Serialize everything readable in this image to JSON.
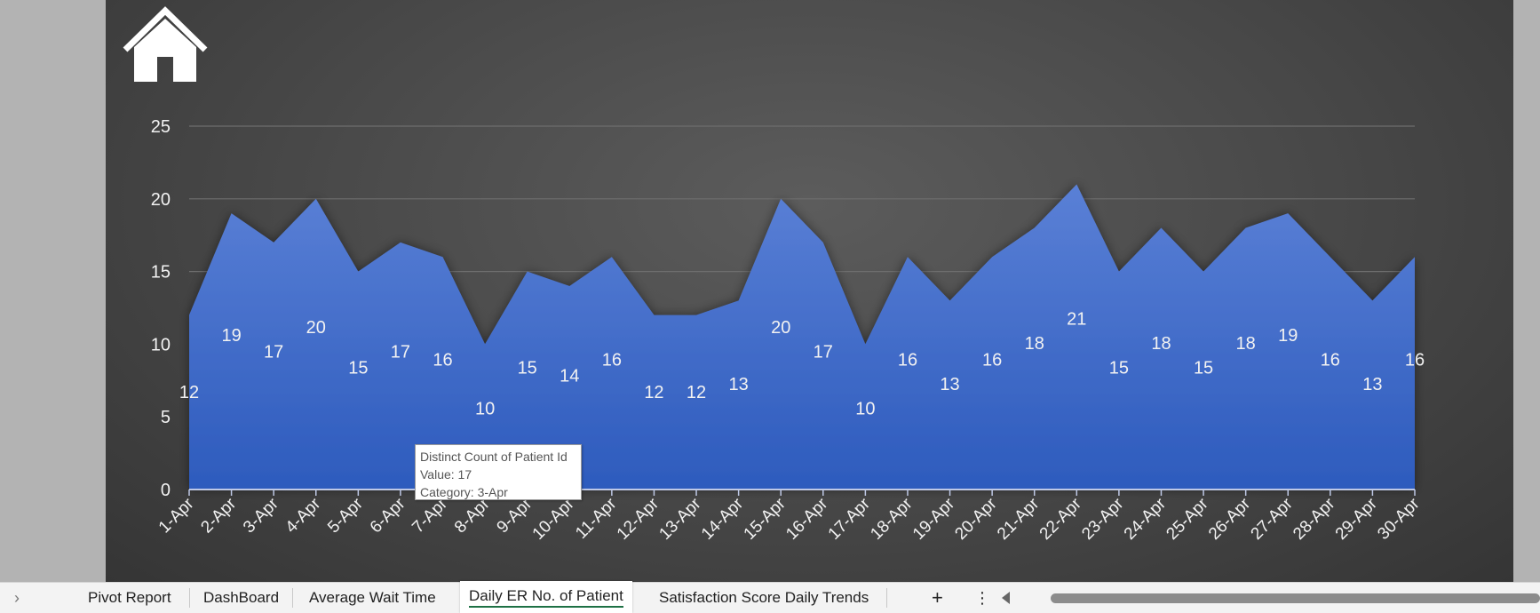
{
  "tabs": {
    "nav_arrow": "›",
    "items": [
      {
        "label": "Pivot Report"
      },
      {
        "label": "DashBoard"
      },
      {
        "label": "Average Wait Time"
      },
      {
        "label": "Daily ER No. of Patient"
      },
      {
        "label": "Satisfaction Score Daily Trends"
      }
    ],
    "active_index": 3,
    "add_label": "+",
    "more_label": "⋮"
  },
  "tooltip": {
    "line1": "Distinct Count of Patient Id",
    "line2": "Value: 17",
    "line3": "Category: 3-Apr"
  },
  "colors": {
    "area_top": "#5a80d6",
    "area_bottom": "#2d5bbd",
    "text": "#f2f2f2",
    "active_tab_underline": "#1e7145"
  },
  "chart_data": {
    "type": "area",
    "categories": [
      "1-Apr",
      "2-Apr",
      "3-Apr",
      "4-Apr",
      "5-Apr",
      "6-Apr",
      "7-Apr",
      "8-Apr",
      "9-Apr",
      "10-Apr",
      "11-Apr",
      "12-Apr",
      "13-Apr",
      "14-Apr",
      "15-Apr",
      "16-Apr",
      "17-Apr",
      "18-Apr",
      "19-Apr",
      "20-Apr",
      "21-Apr",
      "22-Apr",
      "23-Apr",
      "24-Apr",
      "25-Apr",
      "26-Apr",
      "27-Apr",
      "28-Apr",
      "29-Apr",
      "30-Apr"
    ],
    "values": [
      12,
      19,
      17,
      20,
      15,
      17,
      16,
      10,
      15,
      14,
      16,
      12,
      12,
      13,
      20,
      17,
      10,
      16,
      13,
      16,
      18,
      21,
      15,
      18,
      15,
      18,
      19,
      16,
      13,
      16
    ],
    "ylim": [
      0,
      25
    ],
    "yticks": [
      0,
      5,
      10,
      15,
      20,
      25
    ],
    "grid": true,
    "legend": "none",
    "title": "",
    "xlabel": "",
    "ylabel": ""
  }
}
